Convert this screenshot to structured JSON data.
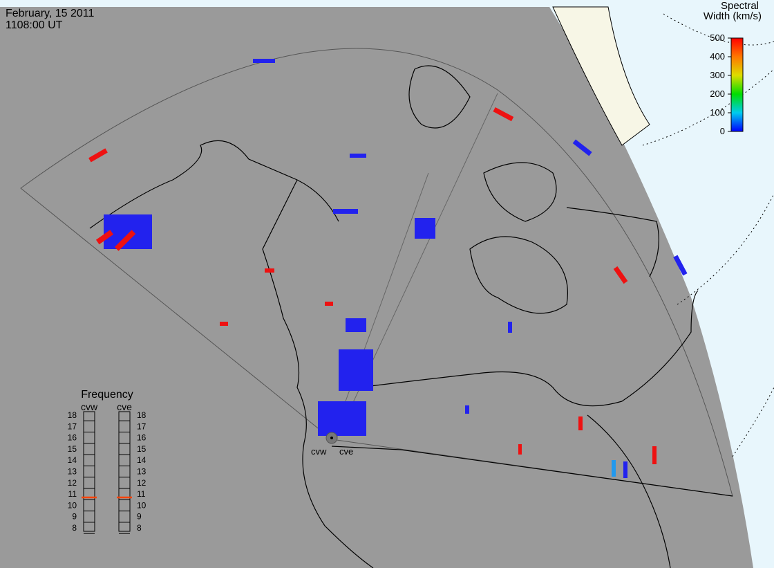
{
  "header": {
    "date": "February, 15 2011",
    "time": "1108:00 UT"
  },
  "colorbar": {
    "title": [
      "Spectral",
      "Width (km/s)"
    ],
    "range": [
      0,
      500
    ],
    "ticks": [
      0,
      100,
      200,
      300,
      400,
      500
    ]
  },
  "frequency": {
    "title": "Frequency",
    "range": [
      8,
      18
    ],
    "ticks": [
      8,
      9,
      10,
      11,
      12,
      13,
      14,
      15,
      16,
      17,
      18
    ],
    "radars": [
      {
        "name": "cvw",
        "value": 10.7
      },
      {
        "name": "cve",
        "value": 10.7
      }
    ]
  },
  "sites": [
    "cvw",
    "cve"
  ]
}
